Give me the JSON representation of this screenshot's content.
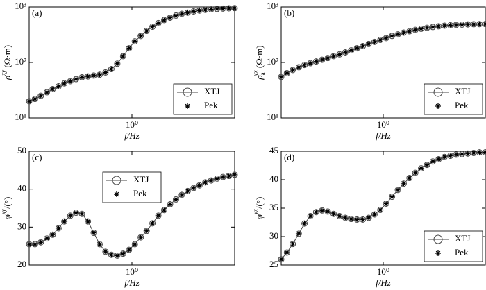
{
  "chart_data": [
    {
      "type": "line",
      "panel_label": "(a)",
      "xscale": "log",
      "yscale": "log",
      "legend": "lower right",
      "xlabel": "f/Hz",
      "ylabel": {
        "symbol": "ρ",
        "superscript": "xy",
        "unit": " (Ω·m)"
      },
      "xlim": [
        0.2,
        5
      ],
      "ylim": [
        10,
        1000
      ],
      "xticks": [
        {
          "value": 1,
          "label": "10⁰"
        }
      ],
      "yticks": [
        {
          "value": 10,
          "label": "10¹"
        },
        {
          "value": 100,
          "label": "10²"
        },
        {
          "value": 1000,
          "label": "10³"
        }
      ],
      "x": [
        0.2,
        0.219,
        0.24,
        0.264,
        0.289,
        0.317,
        0.347,
        0.381,
        0.417,
        0.457,
        0.502,
        0.55,
        0.603,
        0.661,
        0.725,
        0.795,
        0.871,
        0.955,
        1.047,
        1.148,
        1.259,
        1.38,
        1.513,
        1.658,
        1.818,
        1.993,
        2.185,
        2.396,
        2.627,
        2.88,
        3.157,
        3.462,
        3.795,
        4.161,
        4.562,
        5.0
      ],
      "series": [
        {
          "name": "XTJ",
          "color": "#444444",
          "marker": "circle",
          "values": [
            20,
            22,
            25,
            29,
            33,
            37,
            42,
            46,
            50,
            54,
            56,
            58,
            60,
            66,
            76,
            95,
            130,
            180,
            240,
            300,
            370,
            440,
            510,
            580,
            640,
            700,
            750,
            790,
            830,
            860,
            885,
            905,
            920,
            935,
            945,
            950
          ]
        },
        {
          "name": "Pek",
          "color": "#000000",
          "marker": "asterisk",
          "values": [
            20,
            22,
            25,
            29,
            33,
            37,
            42,
            46,
            50,
            54,
            56,
            58,
            60,
            66,
            76,
            95,
            130,
            180,
            240,
            300,
            370,
            440,
            510,
            580,
            640,
            700,
            750,
            790,
            830,
            860,
            885,
            905,
            920,
            935,
            945,
            950
          ]
        }
      ]
    },
    {
      "type": "line",
      "panel_label": "(b)",
      "xscale": "log",
      "yscale": "log",
      "legend": "lower right",
      "xlabel": "f/Hz",
      "ylabel": {
        "symbol": "ρ",
        "subscript": "a",
        "superscript": "yx",
        "unit": " (Ω·m)"
      },
      "xlim": [
        0.2,
        5
      ],
      "ylim": [
        10,
        1000
      ],
      "xticks": [
        {
          "value": 1,
          "label": "10⁰"
        }
      ],
      "yticks": [
        {
          "value": 10,
          "label": "10¹"
        },
        {
          "value": 100,
          "label": "10²"
        },
        {
          "value": 1000,
          "label": "10³"
        }
      ],
      "x": [
        0.2,
        0.219,
        0.24,
        0.264,
        0.289,
        0.317,
        0.347,
        0.381,
        0.417,
        0.457,
        0.502,
        0.55,
        0.603,
        0.661,
        0.725,
        0.795,
        0.871,
        0.955,
        1.047,
        1.148,
        1.259,
        1.38,
        1.513,
        1.658,
        1.818,
        1.993,
        2.185,
        2.396,
        2.627,
        2.88,
        3.157,
        3.462,
        3.795,
        4.161,
        4.562,
        5.0
      ],
      "series": [
        {
          "name": "XTJ",
          "color": "#444444",
          "marker": "circle",
          "values": [
            55,
            64,
            73,
            82,
            90,
            97,
            104,
            112,
            120,
            130,
            140,
            152,
            165,
            180,
            197,
            215,
            235,
            255,
            275,
            300,
            320,
            345,
            365,
            385,
            405,
            420,
            435,
            448,
            460,
            468,
            475,
            480,
            485,
            488,
            490,
            492
          ]
        },
        {
          "name": "Pek",
          "color": "#000000",
          "marker": "asterisk",
          "values": [
            55,
            64,
            73,
            82,
            90,
            97,
            104,
            112,
            120,
            130,
            140,
            152,
            165,
            180,
            197,
            215,
            235,
            255,
            275,
            300,
            320,
            345,
            365,
            385,
            405,
            420,
            435,
            448,
            460,
            468,
            475,
            480,
            485,
            488,
            490,
            492
          ]
        }
      ]
    },
    {
      "type": "line",
      "panel_label": "(c)",
      "xscale": "log",
      "yscale": "linear",
      "legend": "upper center",
      "xlabel": "f/Hz",
      "ylabel": {
        "symbol": "φ",
        "superscript": "xy",
        "unit": "/(°)"
      },
      "xlim": [
        0.2,
        5
      ],
      "ylim": [
        20,
        50
      ],
      "xticks": [
        {
          "value": 1,
          "label": "10⁰"
        }
      ],
      "yticks": [
        20,
        30,
        40,
        50
      ],
      "x": [
        0.2,
        0.219,
        0.24,
        0.264,
        0.289,
        0.317,
        0.347,
        0.381,
        0.417,
        0.457,
        0.502,
        0.55,
        0.603,
        0.661,
        0.725,
        0.795,
        0.871,
        0.955,
        1.047,
        1.148,
        1.259,
        1.38,
        1.513,
        1.658,
        1.818,
        1.993,
        2.185,
        2.396,
        2.627,
        2.88,
        3.157,
        3.462,
        3.795,
        4.161,
        4.562,
        5.0
      ],
      "series": [
        {
          "name": "XTJ",
          "color": "#444444",
          "marker": "circle",
          "values": [
            25.5,
            25.5,
            26,
            27,
            28,
            29.7,
            31.5,
            33,
            33.8,
            33.5,
            31.5,
            28.5,
            25.5,
            23.5,
            22.7,
            22.5,
            23,
            24,
            25.5,
            27.3,
            29,
            31,
            33,
            34.5,
            36,
            37.3,
            38.5,
            39.5,
            40.3,
            41,
            41.8,
            42.3,
            42.8,
            43.2,
            43.5,
            43.8
          ]
        },
        {
          "name": "Pek",
          "color": "#000000",
          "marker": "asterisk",
          "values": [
            25.5,
            25.5,
            26,
            27,
            28,
            29.7,
            31.5,
            33,
            33.8,
            33.5,
            31.5,
            28.5,
            25.5,
            23.5,
            22.7,
            22.5,
            23,
            24,
            25.5,
            27.3,
            29,
            31,
            33,
            34.5,
            36,
            37.3,
            38.5,
            39.5,
            40.3,
            41,
            41.8,
            42.3,
            42.8,
            43.2,
            43.5,
            43.8
          ]
        }
      ]
    },
    {
      "type": "line",
      "panel_label": "(d)",
      "xscale": "log",
      "yscale": "linear",
      "legend": "lower right",
      "xlabel": "f/Hz",
      "ylabel": {
        "symbol": "φ",
        "superscript": "yx",
        "unit": "/(°)"
      },
      "xlim": [
        0.2,
        5
      ],
      "ylim": [
        25,
        45
      ],
      "xticks": [
        {
          "value": 1,
          "label": "10⁰"
        }
      ],
      "yticks": [
        25,
        30,
        35,
        40,
        45
      ],
      "x": [
        0.2,
        0.219,
        0.24,
        0.264,
        0.289,
        0.317,
        0.347,
        0.381,
        0.417,
        0.457,
        0.502,
        0.55,
        0.603,
        0.661,
        0.725,
        0.795,
        0.871,
        0.955,
        1.047,
        1.148,
        1.259,
        1.38,
        1.513,
        1.658,
        1.818,
        1.993,
        2.185,
        2.396,
        2.627,
        2.88,
        3.157,
        3.462,
        3.795,
        4.161,
        4.562,
        5.0
      ],
      "series": [
        {
          "name": "XTJ",
          "color": "#444444",
          "marker": "circle",
          "values": [
            26,
            27.2,
            28.7,
            30.5,
            32.3,
            33.6,
            34.3,
            34.6,
            34.4,
            34,
            33.6,
            33.3,
            33.1,
            33,
            33,
            33.3,
            33.9,
            34.7,
            35.8,
            37,
            38.2,
            39.3,
            40.3,
            41.2,
            42,
            42.6,
            43.2,
            43.6,
            44,
            44.2,
            44.4,
            44.5,
            44.6,
            44.7,
            44.8,
            44.8
          ]
        },
        {
          "name": "Pek",
          "color": "#000000",
          "marker": "asterisk",
          "values": [
            26,
            27.2,
            28.7,
            30.5,
            32.3,
            33.6,
            34.3,
            34.6,
            34.4,
            34,
            33.6,
            33.3,
            33.1,
            33,
            33,
            33.3,
            33.9,
            34.7,
            35.8,
            37,
            38.2,
            39.3,
            40.3,
            41.2,
            42,
            42.6,
            43.2,
            43.6,
            44,
            44.2,
            44.4,
            44.5,
            44.6,
            44.7,
            44.8,
            44.8
          ]
        }
      ]
    }
  ]
}
